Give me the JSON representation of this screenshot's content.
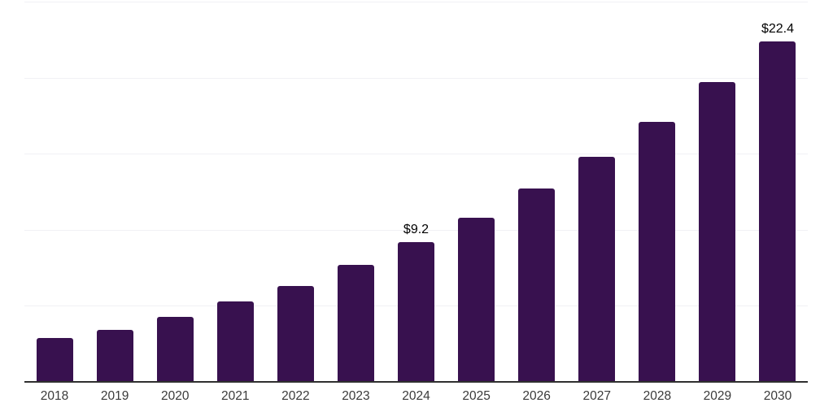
{
  "chart_data": {
    "type": "bar",
    "title": "",
    "xlabel": "",
    "ylabel": "",
    "categories": [
      "2018",
      "2019",
      "2020",
      "2021",
      "2022",
      "2023",
      "2024",
      "2025",
      "2026",
      "2027",
      "2028",
      "2029",
      "2030"
    ],
    "values": [
      2.9,
      3.4,
      4.3,
      5.3,
      6.3,
      7.7,
      9.2,
      10.8,
      12.7,
      14.8,
      17.1,
      19.7,
      22.4
    ],
    "data_labels": [
      "",
      "",
      "",
      "",
      "",
      "",
      "$9.2",
      "",
      "",
      "",
      "",
      "",
      "$22.4"
    ],
    "ylim": [
      0,
      25
    ],
    "gridline_step": 5,
    "grid": "horizontal",
    "legend_position": "none",
    "colors": {
      "bar": "#38114F",
      "gridline": "#f1f1f5",
      "axis": "#2f2f2f",
      "data_label": "#000000",
      "tick_label": "#3a3a3a",
      "background": "#ffffff"
    }
  }
}
